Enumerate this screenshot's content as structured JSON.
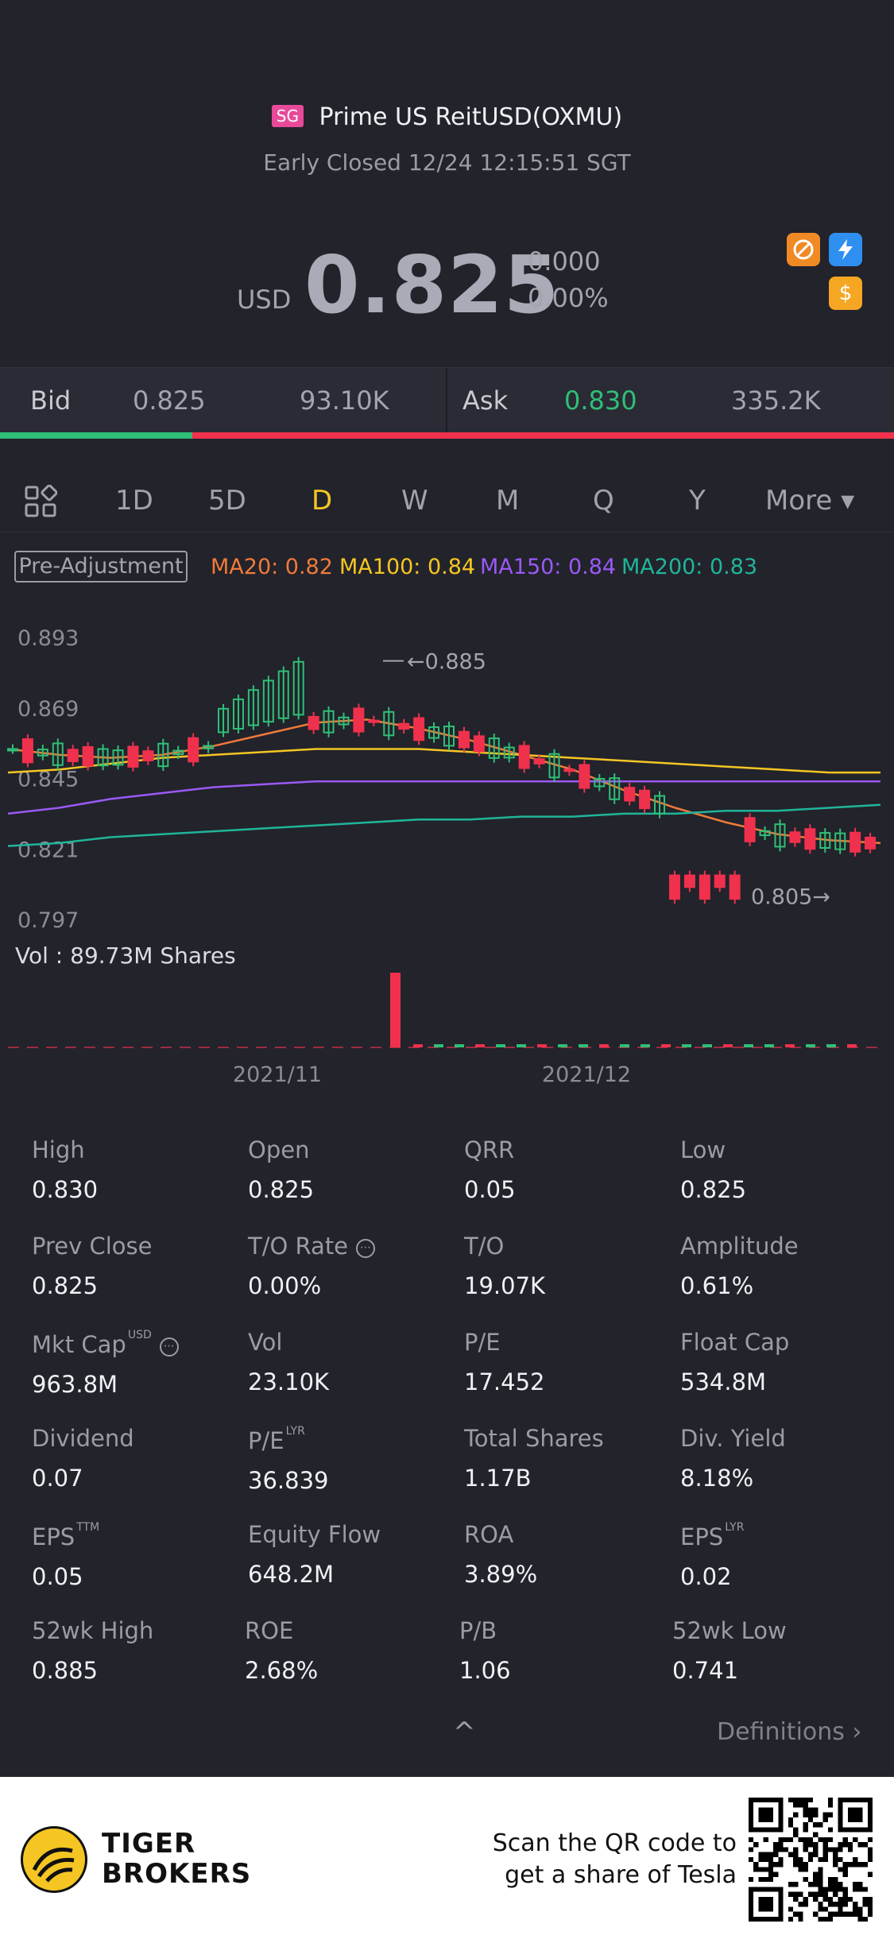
{
  "header": {
    "badge": "SG",
    "title": "Prime US ReitUSD(OXMU)",
    "status": "Early Closed 12/24 12:15:51 SGT",
    "currency": "USD",
    "price": "0.825",
    "change_abs": "0.000",
    "change_pct": "0.00%",
    "icons": [
      "no-entry-icon",
      "lightning-icon",
      "dollar-icon"
    ]
  },
  "quote": {
    "bid_label": "Bid",
    "bid_price": "0.825",
    "bid_size": "93.10K",
    "ask_label": "Ask",
    "ask_price": "0.830",
    "ask_size": "335.2K",
    "bid_share": 0.215
  },
  "tabs": [
    {
      "label": "1D"
    },
    {
      "label": "5D"
    },
    {
      "label": "D"
    },
    {
      "label": "W"
    },
    {
      "label": "M"
    },
    {
      "label": "Q"
    },
    {
      "label": "Y"
    },
    {
      "label": "More ▾"
    }
  ],
  "active_tab": "D",
  "chart_legend": {
    "mode": "Pre-Adjustment",
    "ma20": "MA20: 0.82",
    "ma100": "MA100: 0.84",
    "ma150": "MA150: 0.84",
    "ma200": "MA200: 0.83"
  },
  "chart_data": {
    "type": "line",
    "y_ticks": [
      "0.893",
      "0.869",
      "0.845",
      "0.821",
      "0.797"
    ],
    "ylim": [
      0.797,
      0.893
    ],
    "x_labels": [
      "2021/11",
      "2021/12"
    ],
    "high_annotation": "0.885",
    "low_annotation": "0.805",
    "volume_label": "Vol  : 89.73M Shares",
    "colors": {
      "up": "#2fbf77",
      "down": "#f0314d",
      "ma20": "#f07a3a",
      "ma100": "#f5c623",
      "ma150": "#9b59f5",
      "ma200": "#20b59a"
    },
    "series": [
      {
        "name": "MA20",
        "values": [
          0.855,
          0.853,
          0.852,
          0.853,
          0.856,
          0.86,
          0.864,
          0.865,
          0.862,
          0.858,
          0.853,
          0.848,
          0.841,
          0.835,
          0.83,
          0.826,
          0.824,
          0.823
        ]
      },
      {
        "name": "MA100",
        "values": [
          0.847,
          0.848,
          0.85,
          0.852,
          0.853,
          0.854,
          0.855,
          0.855,
          0.855,
          0.854,
          0.853,
          0.852,
          0.851,
          0.85,
          0.849,
          0.848,
          0.847,
          0.847
        ]
      },
      {
        "name": "MA150",
        "values": [
          0.833,
          0.835,
          0.838,
          0.84,
          0.842,
          0.843,
          0.844,
          0.844,
          0.844,
          0.844,
          0.844,
          0.844,
          0.844,
          0.844,
          0.844,
          0.844,
          0.844,
          0.844
        ]
      },
      {
        "name": "MA200",
        "values": [
          0.822,
          0.823,
          0.825,
          0.826,
          0.827,
          0.828,
          0.829,
          0.83,
          0.831,
          0.831,
          0.832,
          0.832,
          0.833,
          0.833,
          0.834,
          0.834,
          0.835,
          0.836
        ]
      }
    ]
  },
  "stats": [
    {
      "label": "High",
      "value": "0.830"
    },
    {
      "label": "Open",
      "value": "0.825"
    },
    {
      "label": "QRR",
      "value": "0.05"
    },
    {
      "label": "Low",
      "value": "0.825"
    },
    {
      "label": "Prev Close",
      "value": "0.825"
    },
    {
      "label": "T/O Rate",
      "value": "0.00%",
      "info": true
    },
    {
      "label": "T/O",
      "value": "19.07K"
    },
    {
      "label": "Amplitude",
      "value": "0.61%"
    },
    {
      "label": "Mkt Cap",
      "sup": "USD",
      "value": "963.8M",
      "info": true
    },
    {
      "label": "Vol",
      "value": "23.10K"
    },
    {
      "label": "P/E",
      "value": "17.452"
    },
    {
      "label": "Float Cap",
      "value": "534.8M"
    },
    {
      "label": "Dividend",
      "value": "0.07"
    },
    {
      "label": "P/E",
      "sup": "LYR",
      "value": "36.839"
    },
    {
      "label": "Total Shares",
      "value": "1.17B"
    },
    {
      "label": "Div. Yield",
      "value": "8.18%"
    },
    {
      "label": "EPS",
      "sup": "TTM",
      "value": "0.05"
    },
    {
      "label": "Equity Flow",
      "value": "648.2M"
    },
    {
      "label": "ROA",
      "value": "3.89%"
    },
    {
      "label": "EPS",
      "sup": "LYR",
      "value": "0.02"
    },
    {
      "label": "52wk High",
      "value": "0.885"
    },
    {
      "label": "ROE",
      "value": "2.68%"
    },
    {
      "label": "P/B",
      "value": "1.06"
    },
    {
      "label": "52wk Low",
      "value": "0.741"
    }
  ],
  "collapse_icon": "^",
  "definitions_label": "Definitions ›",
  "footer": {
    "brand_line1": "TIGER",
    "brand_line2": "BROKERS",
    "scan_line1": "Scan the QR code to",
    "scan_line2": "get a share of Tesla"
  }
}
